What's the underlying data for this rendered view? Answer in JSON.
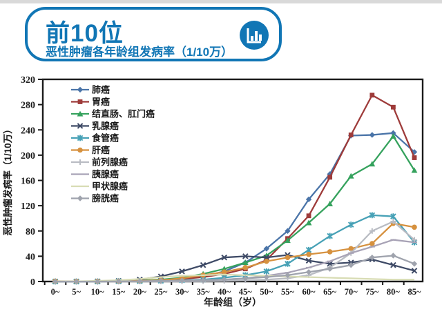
{
  "header": {
    "title": "前10位",
    "subtitle": "恶性肿瘤各年龄组发病率（1/10万）",
    "icon": "bar-chart-icon",
    "accent_color": "#1176b5"
  },
  "chart_data": {
    "type": "line",
    "title": "恶性肿瘤各年龄组发病率（前10位）",
    "xlabel": "年龄组（岁）",
    "ylabel": "恶性肿瘤发病率（1/10万）",
    "ylim": [
      0,
      320
    ],
    "ytick_step": 40,
    "yticks": [
      0,
      40,
      80,
      120,
      160,
      200,
      240,
      280,
      320
    ],
    "grid": false,
    "legend_position": "upper-left-inside",
    "categories": [
      "0~",
      "5~",
      "10~",
      "15~",
      "20~",
      "25~",
      "30~",
      "35~",
      "40~",
      "45~",
      "50~",
      "55~",
      "60~",
      "65~",
      "70~",
      "75~",
      "80~",
      "85~"
    ],
    "series": [
      {
        "name": "肺癌",
        "color": "#4a74a8",
        "marker": "diamond",
        "values": [
          0.4,
          0.3,
          0.4,
          0.6,
          1,
          2,
          4,
          8,
          16,
          30,
          52,
          80,
          130,
          170,
          231,
          232,
          235,
          205
        ]
      },
      {
        "name": "胃癌",
        "color": "#9e3b3a",
        "marker": "square",
        "values": [
          0.3,
          0.2,
          0.3,
          0.5,
          1,
          2,
          4,
          7,
          12,
          20,
          34,
          68,
          104,
          165,
          232,
          295,
          276,
          196
        ]
      },
      {
        "name": "结直肠、肛门癌",
        "color": "#35a25d",
        "marker": "triangle",
        "values": [
          0.4,
          0.3,
          0.4,
          0.8,
          1.5,
          3,
          6,
          12,
          20,
          30,
          41,
          65,
          93,
          123,
          167,
          186,
          230,
          176
        ]
      },
      {
        "name": "乳腺癌",
        "color": "#3e4a66",
        "marker": "x",
        "values": [
          0,
          0,
          0.2,
          1,
          3,
          8,
          16,
          26,
          38,
          40,
          38,
          42,
          33,
          28,
          30,
          35,
          26,
          17
        ]
      },
      {
        "name": "食管癌",
        "color": "#47a1b6",
        "marker": "star",
        "values": [
          0,
          0,
          0,
          0.3,
          0.5,
          1,
          2,
          3,
          6,
          10,
          16,
          28,
          50,
          72,
          90,
          105,
          103,
          62
        ]
      },
      {
        "name": "肝癌",
        "color": "#d6913f",
        "marker": "circle",
        "values": [
          0.5,
          0.3,
          0.3,
          0.5,
          1,
          2,
          5,
          10,
          15,
          22,
          32,
          38,
          43,
          47,
          52,
          60,
          92,
          86
        ]
      },
      {
        "name": "前列腺癌",
        "color": "#b9bcc3",
        "marker": "plus",
        "values": [
          0,
          0,
          0,
          0,
          0,
          0,
          0.3,
          0.5,
          1,
          2,
          3,
          5,
          10,
          22,
          45,
          80,
          95,
          66
        ]
      },
      {
        "name": "胰腺癌",
        "color": "#a8a3b6",
        "marker": "dash",
        "values": [
          0,
          0,
          0,
          0,
          0.3,
          0.5,
          1,
          2,
          3,
          5,
          9,
          14,
          22,
          32,
          45,
          55,
          66,
          62
        ]
      },
      {
        "name": "甲状腺癌",
        "color": "#d8dcb4",
        "marker": "none",
        "values": [
          0.2,
          0.3,
          1,
          2,
          4,
          7,
          9,
          10,
          11,
          10,
          9,
          8,
          7,
          6,
          5,
          4,
          3,
          3
        ]
      },
      {
        "name": "膀胱癌",
        "color": "#9fa3ad",
        "marker": "diamond",
        "values": [
          0,
          0,
          0,
          0.3,
          0.5,
          1,
          1.5,
          2,
          3,
          5,
          7,
          10,
          15,
          20,
          26,
          38,
          41,
          28
        ]
      }
    ]
  }
}
